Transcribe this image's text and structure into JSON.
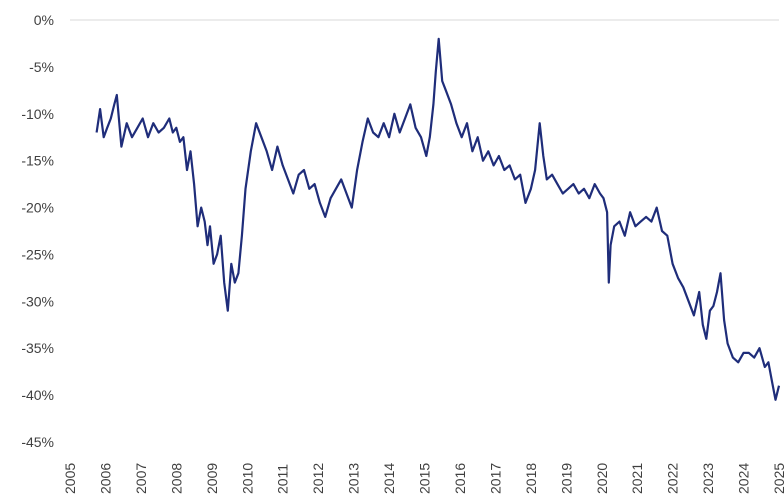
{
  "chart_data": {
    "type": "line",
    "title": "",
    "xlabel": "",
    "ylabel": "",
    "xlim": [
      2005,
      2025
    ],
    "ylim": [
      -45,
      0
    ],
    "grid": "horizontal line at 0% only",
    "legend": "none",
    "y_ticks": [
      0,
      -5,
      -10,
      -15,
      -20,
      -25,
      -30,
      -35,
      -40,
      -45
    ],
    "y_tick_labels": [
      "0%",
      "-5%",
      "-10%",
      "-15%",
      "-20%",
      "-25%",
      "-30%",
      "-35%",
      "-40%",
      "-45%"
    ],
    "x_ticks": [
      2005,
      2006,
      2007,
      2008,
      2009,
      2010,
      2011,
      2012,
      2013,
      2014,
      2015,
      2016,
      2017,
      2018,
      2019,
      2020,
      2021,
      2022,
      2023,
      2024,
      2025
    ],
    "x_tick_labels": [
      "2005",
      "2006",
      "2007",
      "2008",
      "2009",
      "2010",
      "2011",
      "2012",
      "2013",
      "2014",
      "2015",
      "2016",
      "2017",
      "2018",
      "2019",
      "2020",
      "2021",
      "2022",
      "2023",
      "2024",
      "2025"
    ],
    "series": [
      {
        "color": "#1f2d7a",
        "x": [
          2005.75,
          2005.85,
          2005.95,
          2006.05,
          2006.15,
          2006.25,
          2006.32,
          2006.45,
          2006.6,
          2006.75,
          2006.9,
          2007.05,
          2007.2,
          2007.35,
          2007.5,
          2007.65,
          2007.8,
          2007.9,
          2008.0,
          2008.1,
          2008.2,
          2008.3,
          2008.4,
          2008.5,
          2008.6,
          2008.7,
          2008.8,
          2008.88,
          2008.95,
          2009.05,
          2009.15,
          2009.25,
          2009.35,
          2009.45,
          2009.55,
          2009.65,
          2009.75,
          2009.85,
          2009.95,
          2010.1,
          2010.25,
          2010.4,
          2010.55,
          2010.7,
          2010.85,
          2011.0,
          2011.15,
          2011.3,
          2011.45,
          2011.6,
          2011.75,
          2011.9,
          2012.05,
          2012.2,
          2012.35,
          2012.5,
          2012.65,
          2012.8,
          2012.95,
          2013.1,
          2013.25,
          2013.4,
          2013.55,
          2013.7,
          2013.85,
          2014.0,
          2014.15,
          2014.3,
          2014.45,
          2014.6,
          2014.75,
          2014.9,
          2015.05,
          2015.15,
          2015.25,
          2015.32,
          2015.4,
          2015.5,
          2015.6,
          2015.75,
          2015.9,
          2016.05,
          2016.2,
          2016.35,
          2016.5,
          2016.65,
          2016.8,
          2016.95,
          2017.1,
          2017.25,
          2017.4,
          2017.55,
          2017.7,
          2017.85,
          2018.0,
          2018.12,
          2018.25,
          2018.35,
          2018.45,
          2018.6,
          2018.75,
          2018.9,
          2019.05,
          2019.2,
          2019.35,
          2019.5,
          2019.65,
          2019.8,
          2019.95,
          2020.05,
          2020.15,
          2020.2,
          2020.25,
          2020.35,
          2020.5,
          2020.65,
          2020.8,
          2020.95,
          2021.1,
          2021.25,
          2021.4,
          2021.55,
          2021.7,
          2021.85,
          2022.0,
          2022.15,
          2022.3,
          2022.45,
          2022.6,
          2022.75,
          2022.85,
          2022.95,
          2023.05,
          2023.15,
          2023.25,
          2023.35,
          2023.45,
          2023.55,
          2023.7,
          2023.85,
          2024.0,
          2024.15,
          2024.3,
          2024.45,
          2024.6,
          2024.7,
          2024.8,
          2024.9,
          2025.0
        ],
        "y": [
          -12.0,
          -9.5,
          -12.5,
          -11.5,
          -10.5,
          -9.0,
          -8.0,
          -13.5,
          -11.0,
          -12.5,
          -11.5,
          -10.5,
          -12.5,
          -11.0,
          -12.0,
          -11.5,
          -10.5,
          -12.0,
          -11.5,
          -13.0,
          -12.5,
          -16.0,
          -14.0,
          -17.5,
          -22.0,
          -20.0,
          -21.5,
          -24.0,
          -22.0,
          -26.0,
          -25.0,
          -23.0,
          -28.0,
          -31.0,
          -26.0,
          -28.0,
          -27.0,
          -23.0,
          -18.0,
          -14.0,
          -11.0,
          -12.5,
          -14.0,
          -16.0,
          -13.5,
          -15.5,
          -17.0,
          -18.5,
          -16.5,
          -16.0,
          -18.0,
          -17.5,
          -19.5,
          -21.0,
          -19.0,
          -18.0,
          -17.0,
          -18.5,
          -20.0,
          -16.0,
          -13.0,
          -10.5,
          -12.0,
          -12.5,
          -11.0,
          -12.5,
          -10.0,
          -12.0,
          -10.5,
          -9.0,
          -11.5,
          -12.5,
          -14.5,
          -12.5,
          -9.0,
          -5.5,
          -2.0,
          -6.5,
          -7.5,
          -9.0,
          -11.0,
          -12.5,
          -11.0,
          -14.0,
          -12.5,
          -15.0,
          -14.0,
          -15.5,
          -14.5,
          -16.0,
          -15.5,
          -17.0,
          -16.5,
          -19.5,
          -18.0,
          -16.0,
          -11.0,
          -14.5,
          -17.0,
          -16.5,
          -17.5,
          -18.5,
          -18.0,
          -17.5,
          -18.5,
          -18.0,
          -19.0,
          -17.5,
          -18.5,
          -19.0,
          -20.5,
          -28.0,
          -24.0,
          -22.0,
          -21.5,
          -23.0,
          -20.5,
          -22.0,
          -21.5,
          -21.0,
          -21.5,
          -20.0,
          -22.5,
          -23.0,
          -26.0,
          -27.5,
          -28.5,
          -30.0,
          -31.5,
          -29.0,
          -32.5,
          -34.0,
          -31.0,
          -30.5,
          -29.0,
          -27.0,
          -32.0,
          -34.5,
          -36.0,
          -36.5,
          -35.5,
          -35.5,
          -36.0,
          -35.0,
          -37.0,
          -36.5,
          -38.5,
          -40.5,
          -39.0
        ]
      }
    ]
  }
}
